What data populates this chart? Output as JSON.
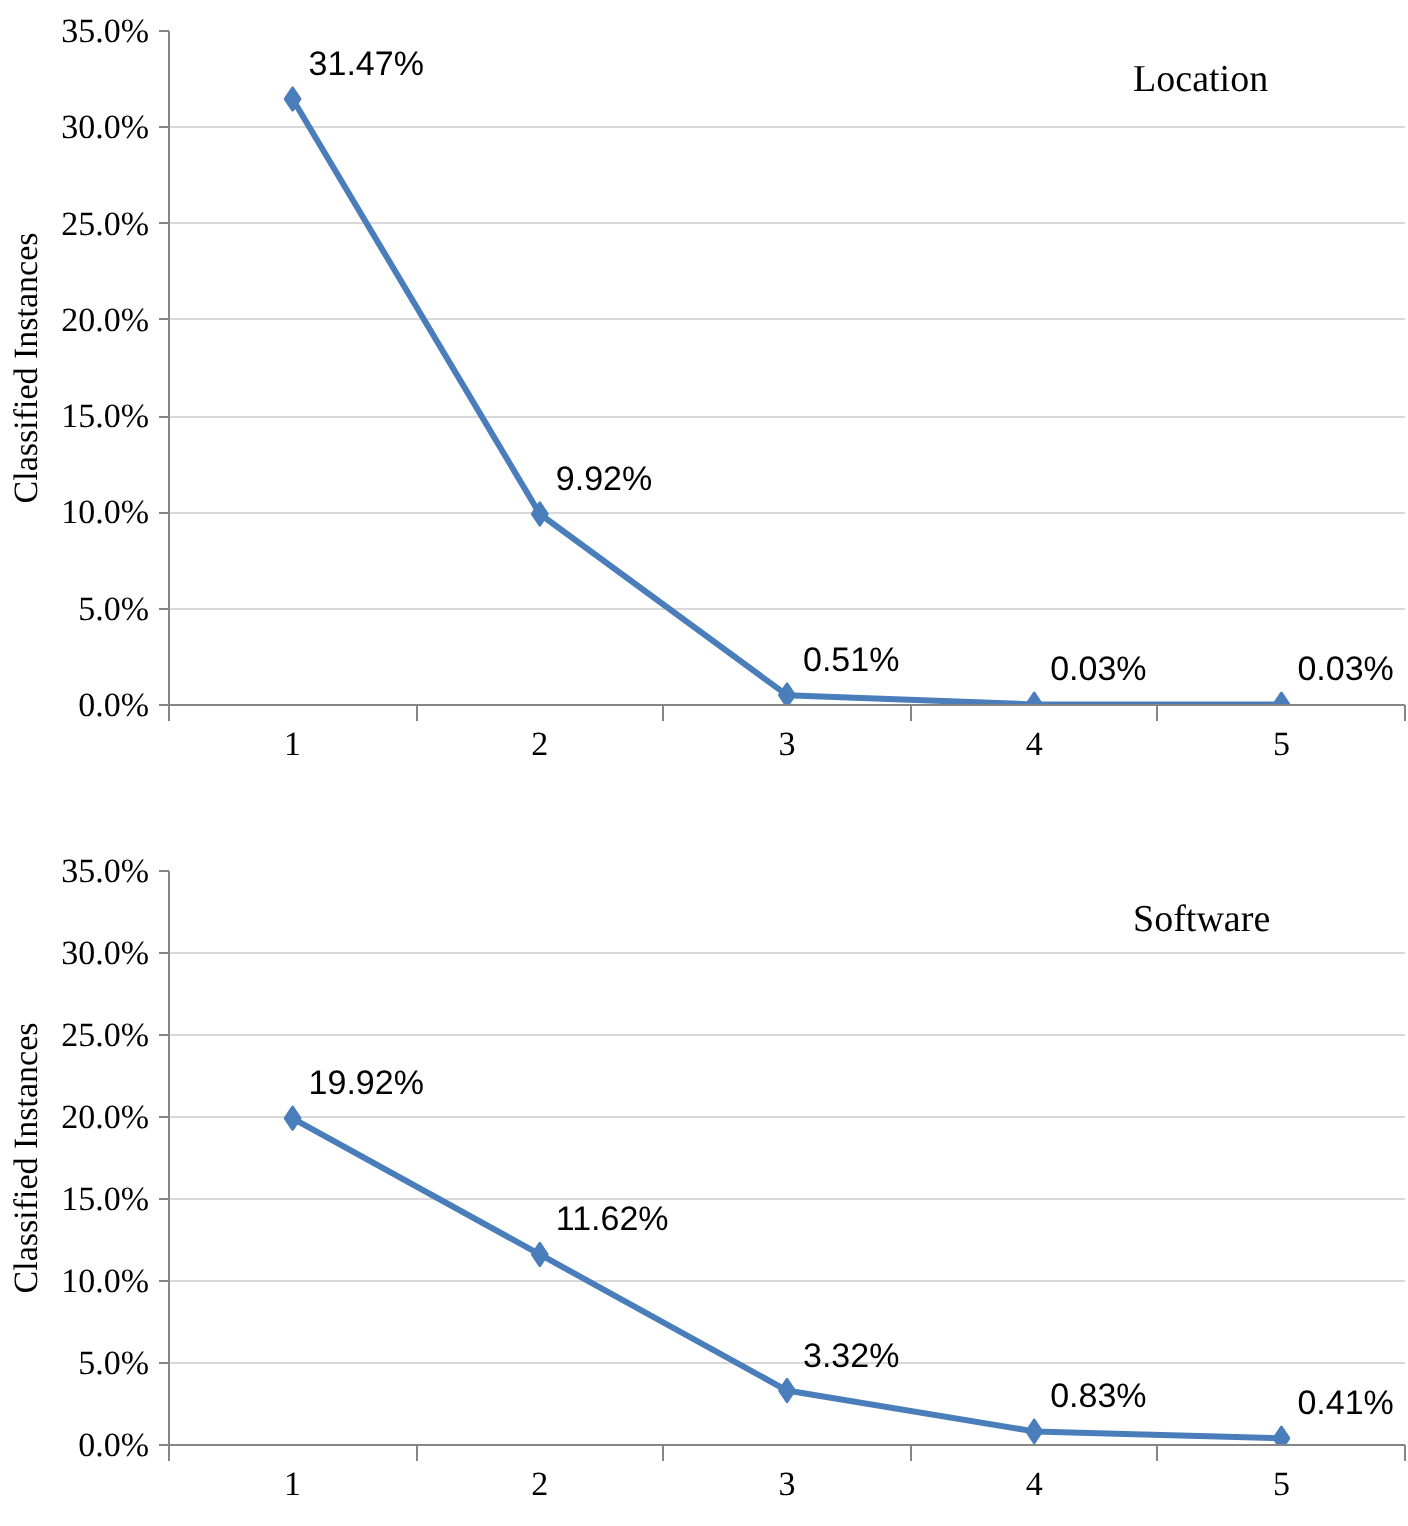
{
  "chart_data": [
    {
      "type": "line",
      "ylabel": "Classified Instances",
      "annotations": [
        "Location"
      ],
      "categories": [
        "1",
        "2",
        "3",
        "4",
        "5"
      ],
      "series": [
        {
          "color": "#4a7ebb",
          "values": [
            31.47,
            9.92,
            0.51,
            0.03,
            0.03
          ],
          "value_labels": [
            "31.47%",
            "9.92%",
            "0.51%",
            "0.03%",
            "0.03%"
          ]
        }
      ],
      "ylim": [
        0,
        35
      ],
      "yticks": [
        {
          "value": 0,
          "label": "0.0%"
        },
        {
          "value": 5,
          "label": "5.0%"
        },
        {
          "value": 10,
          "label": "10.0%"
        },
        {
          "value": 15,
          "label": "15.0%"
        },
        {
          "value": 20,
          "label": "20.0%"
        },
        {
          "value": 25,
          "label": "25.0%"
        },
        {
          "value": 30,
          "label": "30.0%"
        },
        {
          "value": 35,
          "label": "35.0%"
        }
      ],
      "grid": "y",
      "marker": "diamond"
    },
    {
      "type": "line",
      "ylabel": "Classified Instances",
      "annotations": [
        "Software"
      ],
      "categories": [
        "1",
        "2",
        "3",
        "4",
        "5"
      ],
      "series": [
        {
          "color": "#4a7ebb",
          "values": [
            19.92,
            11.62,
            3.32,
            0.83,
            0.41
          ],
          "value_labels": [
            "19.92%",
            "11.62%",
            "3.32%",
            "0.83%",
            "0.41%"
          ]
        }
      ],
      "ylim": [
        0,
        35
      ],
      "yticks": [
        {
          "value": 0,
          "label": "0.0%"
        },
        {
          "value": 5,
          "label": "5.0%"
        },
        {
          "value": 10,
          "label": "10.0%"
        },
        {
          "value": 15,
          "label": "15.0%"
        },
        {
          "value": 20,
          "label": "20.0%"
        },
        {
          "value": 25,
          "label": "25.0%"
        },
        {
          "value": 30,
          "label": "30.0%"
        },
        {
          "value": 35,
          "label": "35.0%"
        }
      ],
      "grid": "y",
      "marker": "diamond"
    }
  ]
}
